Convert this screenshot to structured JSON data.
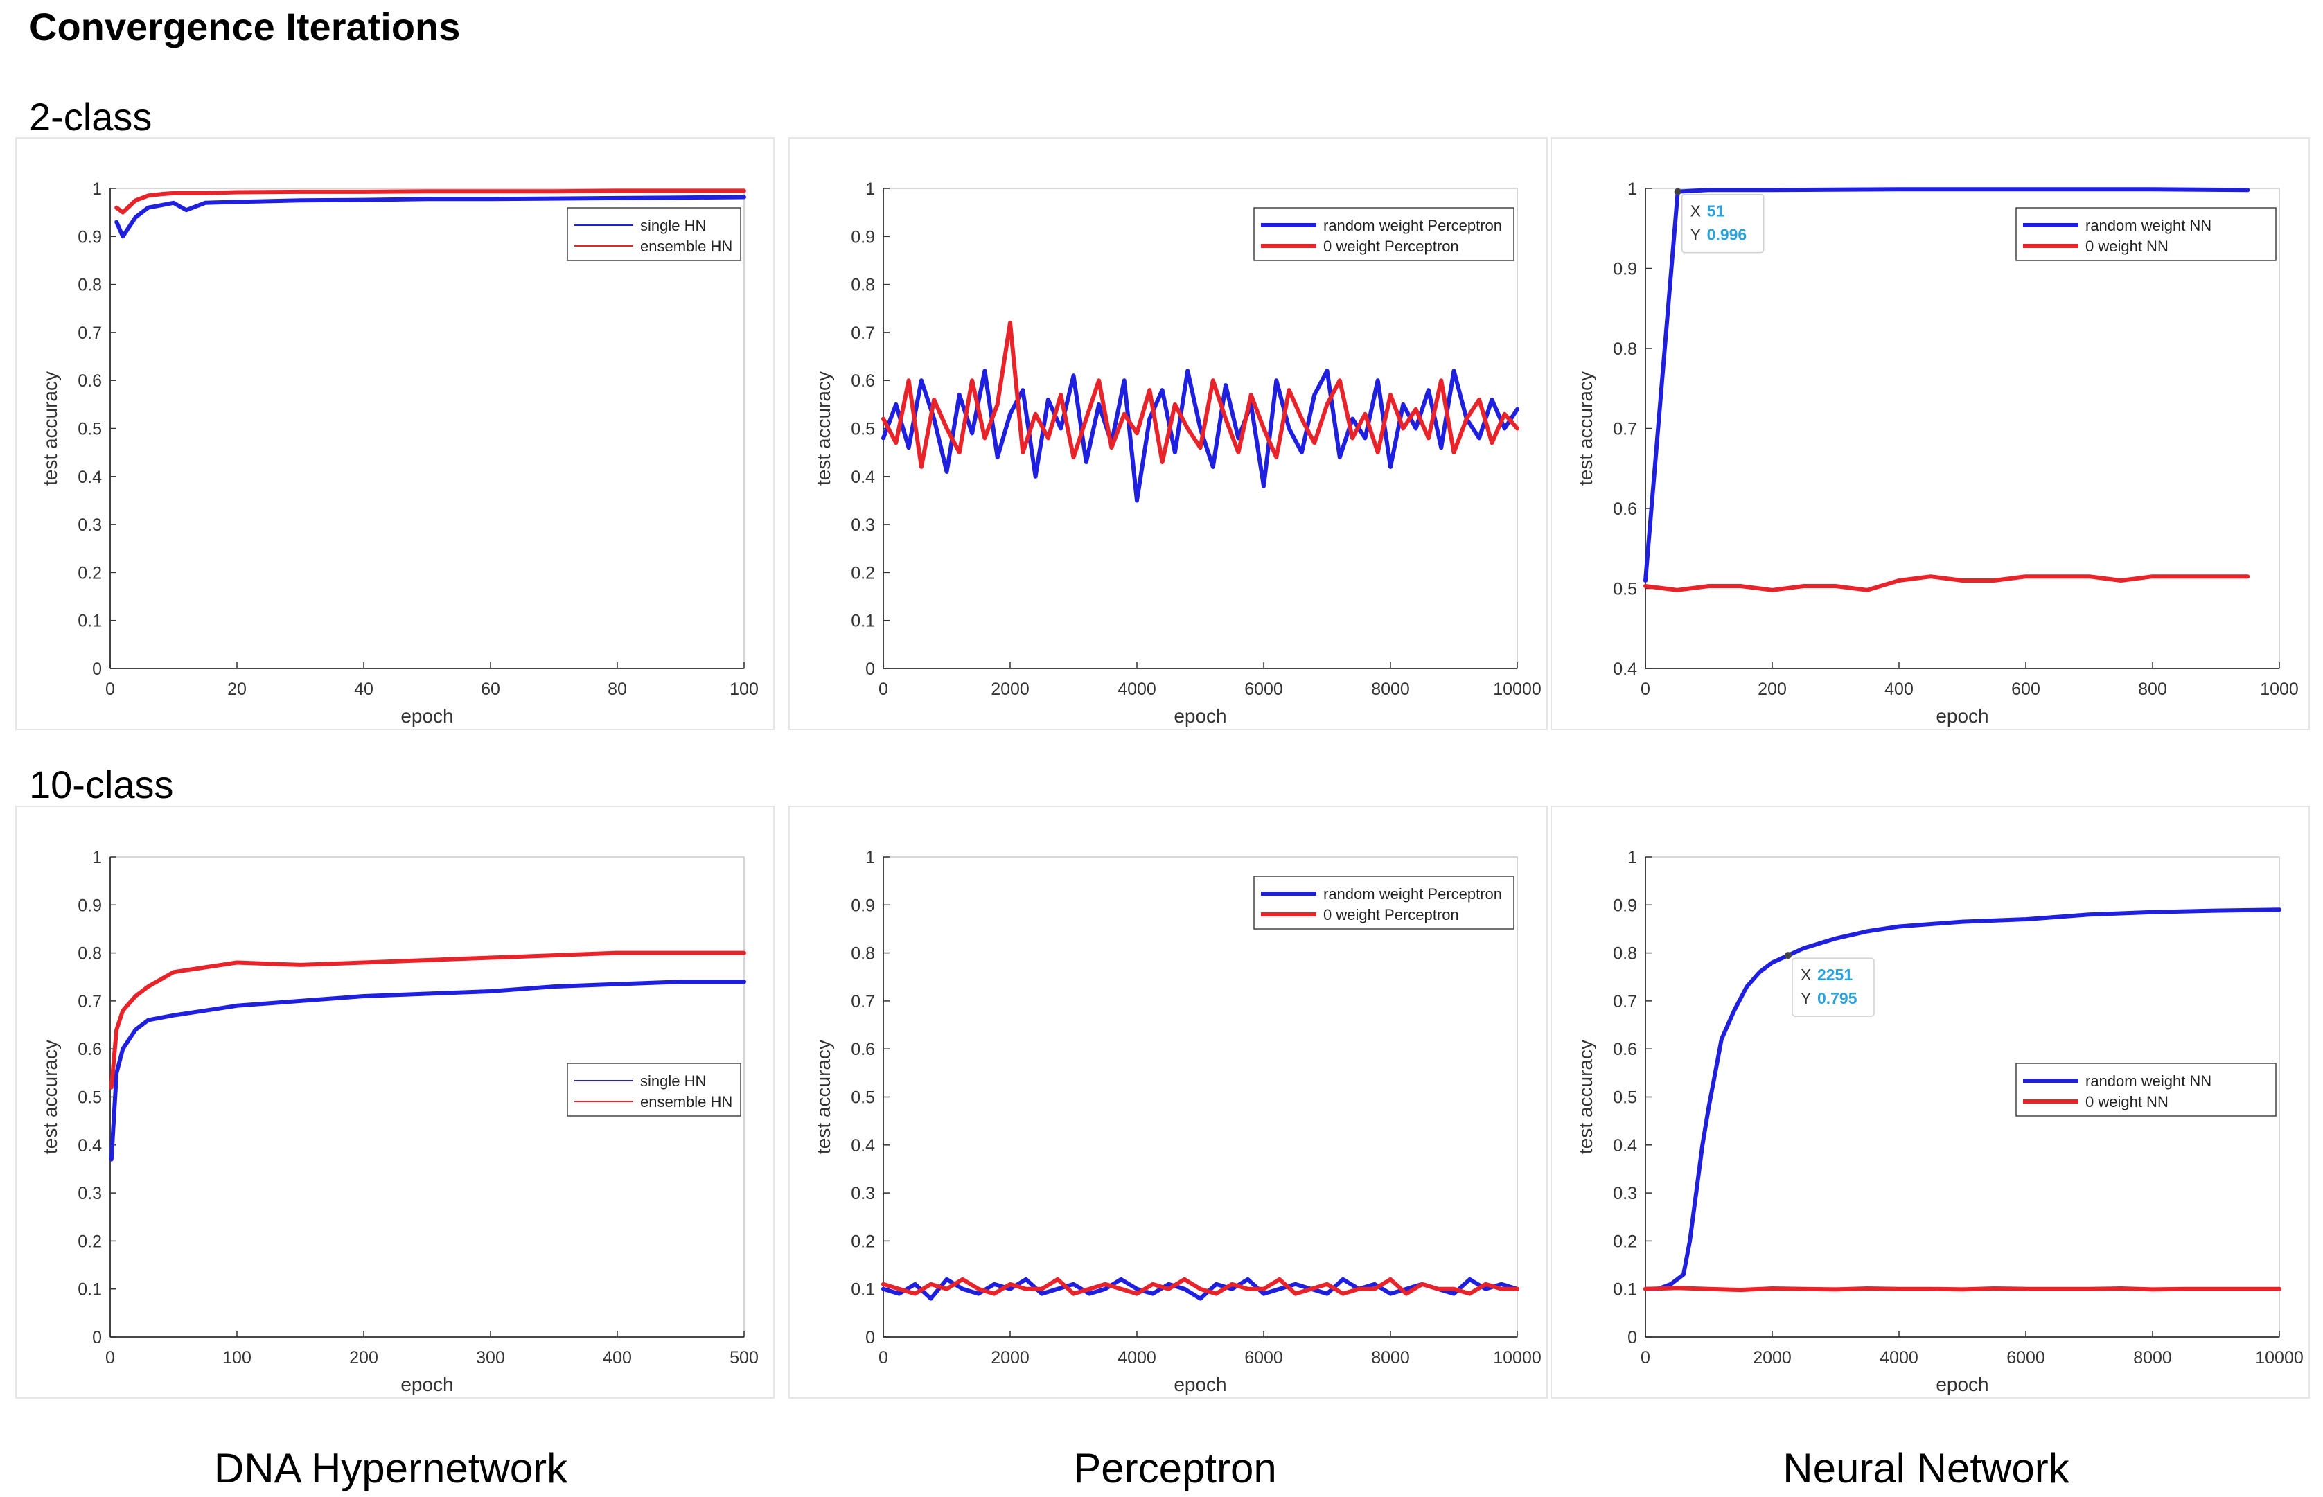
{
  "title": "Convergence Iterations",
  "rows": [
    "2-class",
    "10-class"
  ],
  "columns": [
    "DNA Hypernetwork",
    "Perceptron",
    "Neural Network"
  ],
  "chart_data": [
    {
      "id": "hn2",
      "type": "line",
      "xlabel": "epoch",
      "ylabel": "test accuracy",
      "xlim": [
        0,
        100
      ],
      "ylim": [
        0,
        1
      ],
      "xticks": [
        0,
        20,
        40,
        60,
        80,
        100
      ],
      "yticks": [
        0,
        0.1,
        0.2,
        0.3,
        0.4,
        0.5,
        0.6,
        0.7,
        0.8,
        0.9,
        1
      ],
      "legend": [
        "single HN",
        "ensemble HN"
      ],
      "legend_position": "top-right",
      "legend_style": "thin",
      "series": [
        {
          "name": "single HN",
          "color": "#1f1fe0",
          "x": [
            1,
            2,
            4,
            6,
            8,
            10,
            12,
            15,
            20,
            30,
            40,
            50,
            60,
            70,
            80,
            90,
            100
          ],
          "y": [
            0.93,
            0.9,
            0.94,
            0.96,
            0.965,
            0.97,
            0.955,
            0.97,
            0.972,
            0.975,
            0.976,
            0.978,
            0.978,
            0.979,
            0.98,
            0.981,
            0.982
          ]
        },
        {
          "name": "ensemble HN",
          "color": "#e8232a",
          "x": [
            1,
            2,
            4,
            6,
            8,
            10,
            15,
            20,
            30,
            40,
            50,
            60,
            70,
            80,
            90,
            100
          ],
          "y": [
            0.96,
            0.95,
            0.975,
            0.985,
            0.988,
            0.99,
            0.99,
            0.992,
            0.993,
            0.993,
            0.994,
            0.994,
            0.994,
            0.995,
            0.995,
            0.995
          ]
        }
      ]
    },
    {
      "id": "pc2",
      "type": "line",
      "xlabel": "epoch",
      "ylabel": "test accuracy",
      "xlim": [
        0,
        10000
      ],
      "ylim": [
        0,
        1
      ],
      "xticks": [
        0,
        2000,
        4000,
        6000,
        8000,
        10000
      ],
      "yticks": [
        0,
        0.1,
        0.2,
        0.3,
        0.4,
        0.5,
        0.6,
        0.7,
        0.8,
        0.9,
        1
      ],
      "legend": [
        "random weight Perceptron",
        "0 weight Perceptron"
      ],
      "legend_position": "top-right",
      "legend_style": "thick",
      "series": [
        {
          "name": "random weight Perceptron",
          "color": "#1f1fe0",
          "x": [
            0,
            200,
            400,
            600,
            800,
            1000,
            1200,
            1400,
            1600,
            1800,
            2000,
            2200,
            2400,
            2600,
            2800,
            3000,
            3200,
            3400,
            3600,
            3800,
            4000,
            4200,
            4400,
            4600,
            4800,
            5000,
            5200,
            5400,
            5600,
            5800,
            6000,
            6200,
            6400,
            6600,
            6800,
            7000,
            7200,
            7400,
            7600,
            7800,
            8000,
            8200,
            8400,
            8600,
            8800,
            9000,
            9200,
            9400,
            9600,
            9800,
            10000
          ],
          "y": [
            0.48,
            0.55,
            0.46,
            0.6,
            0.52,
            0.41,
            0.57,
            0.49,
            0.62,
            0.44,
            0.53,
            0.58,
            0.4,
            0.56,
            0.5,
            0.61,
            0.43,
            0.55,
            0.47,
            0.6,
            0.35,
            0.52,
            0.58,
            0.45,
            0.62,
            0.5,
            0.42,
            0.59,
            0.48,
            0.55,
            0.38,
            0.6,
            0.5,
            0.45,
            0.57,
            0.62,
            0.44,
            0.52,
            0.48,
            0.6,
            0.42,
            0.55,
            0.5,
            0.58,
            0.46,
            0.62,
            0.52,
            0.48,
            0.56,
            0.5,
            0.54
          ]
        },
        {
          "name": "0 weight Perceptron",
          "color": "#e8232a",
          "x": [
            0,
            200,
            400,
            600,
            800,
            1000,
            1200,
            1400,
            1600,
            1800,
            2000,
            2200,
            2400,
            2600,
            2800,
            3000,
            3200,
            3400,
            3600,
            3800,
            4000,
            4200,
            4400,
            4600,
            4800,
            5000,
            5200,
            5400,
            5600,
            5800,
            6000,
            6200,
            6400,
            6600,
            6800,
            7000,
            7200,
            7400,
            7600,
            7800,
            8000,
            8200,
            8400,
            8600,
            8800,
            9000,
            9200,
            9400,
            9600,
            9800,
            10000
          ],
          "y": [
            0.52,
            0.47,
            0.6,
            0.42,
            0.56,
            0.5,
            0.45,
            0.6,
            0.48,
            0.55,
            0.72,
            0.45,
            0.53,
            0.48,
            0.57,
            0.44,
            0.52,
            0.6,
            0.46,
            0.53,
            0.49,
            0.58,
            0.43,
            0.55,
            0.5,
            0.46,
            0.6,
            0.52,
            0.45,
            0.57,
            0.5,
            0.44,
            0.58,
            0.52,
            0.47,
            0.55,
            0.6,
            0.48,
            0.53,
            0.45,
            0.57,
            0.5,
            0.54,
            0.48,
            0.6,
            0.45,
            0.52,
            0.56,
            0.47,
            0.53,
            0.5
          ]
        }
      ]
    },
    {
      "id": "nn2",
      "type": "line",
      "xlabel": "epoch",
      "ylabel": "test accuracy",
      "xlim": [
        0,
        1000
      ],
      "ylim": [
        0.4,
        1
      ],
      "xticks": [
        0,
        200,
        400,
        600,
        800,
        1000
      ],
      "yticks": [
        0.4,
        0.5,
        0.6,
        0.7,
        0.8,
        0.9,
        1
      ],
      "legend": [
        "random weight NN",
        "0 weight NN"
      ],
      "legend_position": "top-right",
      "legend_style": "thick",
      "series": [
        {
          "name": "random weight NN",
          "color": "#1f1fe0",
          "x": [
            0,
            51,
            100,
            200,
            400,
            600,
            800,
            950
          ],
          "y": [
            0.51,
            0.996,
            0.998,
            0.998,
            0.999,
            0.999,
            0.999,
            0.998
          ]
        },
        {
          "name": "0 weight NN",
          "color": "#e8232a",
          "x": [
            0,
            50,
            100,
            150,
            200,
            250,
            300,
            350,
            400,
            450,
            500,
            550,
            600,
            650,
            700,
            750,
            800,
            850,
            900,
            950
          ],
          "y": [
            0.503,
            0.498,
            0.503,
            0.503,
            0.498,
            0.503,
            0.503,
            0.498,
            0.51,
            0.515,
            0.51,
            0.51,
            0.515,
            0.515,
            0.515,
            0.51,
            0.515,
            0.515,
            0.515,
            0.515
          ]
        }
      ],
      "datatip": {
        "x_label": "X",
        "x_value": "51",
        "y_label": "Y",
        "y_value": "0.996",
        "at_x": 51,
        "at_y": 0.996
      }
    },
    {
      "id": "hn10",
      "type": "line",
      "xlabel": "epoch",
      "ylabel": "test accuracy",
      "xlim": [
        0,
        500
      ],
      "ylim": [
        0,
        1
      ],
      "xticks": [
        0,
        100,
        200,
        300,
        400,
        500
      ],
      "yticks": [
        0,
        0.1,
        0.2,
        0.3,
        0.4,
        0.5,
        0.6,
        0.7,
        0.8,
        0.9,
        1
      ],
      "legend": [
        "single HN",
        "ensemble HN"
      ],
      "legend_position": "center-right",
      "legend_style": "thin",
      "series": [
        {
          "name": "single HN",
          "color": "#1f1fe0",
          "x": [
            1,
            5,
            10,
            20,
            30,
            50,
            75,
            100,
            150,
            200,
            250,
            300,
            350,
            400,
            450,
            500
          ],
          "y": [
            0.37,
            0.55,
            0.6,
            0.64,
            0.66,
            0.67,
            0.68,
            0.69,
            0.7,
            0.71,
            0.715,
            0.72,
            0.73,
            0.735,
            0.74,
            0.74
          ]
        },
        {
          "name": "ensemble HN",
          "color": "#e8232a",
          "x": [
            1,
            5,
            10,
            20,
            30,
            50,
            75,
            100,
            150,
            200,
            250,
            300,
            350,
            400,
            450,
            500
          ],
          "y": [
            0.52,
            0.64,
            0.68,
            0.71,
            0.73,
            0.76,
            0.77,
            0.78,
            0.775,
            0.78,
            0.785,
            0.79,
            0.795,
            0.8,
            0.8,
            0.8
          ]
        }
      ]
    },
    {
      "id": "pc10",
      "type": "line",
      "xlabel": "epoch",
      "ylabel": "test accuracy",
      "xlim": [
        0,
        10000
      ],
      "ylim": [
        0,
        1
      ],
      "xticks": [
        0,
        2000,
        4000,
        6000,
        8000,
        10000
      ],
      "yticks": [
        0,
        0.1,
        0.2,
        0.3,
        0.4,
        0.5,
        0.6,
        0.7,
        0.8,
        0.9,
        1
      ],
      "legend": [
        "random weight Perceptron",
        "0 weight Perceptron"
      ],
      "legend_position": "top-right",
      "legend_style": "thick",
      "series": [
        {
          "name": "random weight Perceptron",
          "color": "#1f1fe0",
          "x": [
            0,
            250,
            500,
            750,
            1000,
            1250,
            1500,
            1750,
            2000,
            2250,
            2500,
            2750,
            3000,
            3250,
            3500,
            3750,
            4000,
            4250,
            4500,
            4750,
            5000,
            5250,
            5500,
            5750,
            6000,
            6250,
            6500,
            6750,
            7000,
            7250,
            7500,
            7750,
            8000,
            8250,
            8500,
            8750,
            9000,
            9250,
            9500,
            9750,
            10000
          ],
          "y": [
            0.1,
            0.09,
            0.11,
            0.08,
            0.12,
            0.1,
            0.09,
            0.11,
            0.1,
            0.12,
            0.09,
            0.1,
            0.11,
            0.09,
            0.1,
            0.12,
            0.1,
            0.09,
            0.11,
            0.1,
            0.08,
            0.11,
            0.1,
            0.12,
            0.09,
            0.1,
            0.11,
            0.1,
            0.09,
            0.12,
            0.1,
            0.11,
            0.09,
            0.1,
            0.11,
            0.1,
            0.09,
            0.12,
            0.1,
            0.11,
            0.1
          ]
        },
        {
          "name": "0 weight Perceptron",
          "color": "#e8232a",
          "x": [
            0,
            250,
            500,
            750,
            1000,
            1250,
            1500,
            1750,
            2000,
            2250,
            2500,
            2750,
            3000,
            3250,
            3500,
            3750,
            4000,
            4250,
            4500,
            4750,
            5000,
            5250,
            5500,
            5750,
            6000,
            6250,
            6500,
            6750,
            7000,
            7250,
            7500,
            7750,
            8000,
            8250,
            8500,
            8750,
            9000,
            9250,
            9500,
            9750,
            10000
          ],
          "y": [
            0.11,
            0.1,
            0.09,
            0.11,
            0.1,
            0.12,
            0.1,
            0.09,
            0.11,
            0.1,
            0.1,
            0.12,
            0.09,
            0.1,
            0.11,
            0.1,
            0.09,
            0.11,
            0.1,
            0.12,
            0.1,
            0.09,
            0.11,
            0.1,
            0.1,
            0.12,
            0.09,
            0.1,
            0.11,
            0.09,
            0.1,
            0.1,
            0.12,
            0.09,
            0.11,
            0.1,
            0.1,
            0.09,
            0.11,
            0.1,
            0.1
          ]
        }
      ]
    },
    {
      "id": "nn10",
      "type": "line",
      "xlabel": "epoch",
      "ylabel": "test accuracy",
      "xlim": [
        0,
        10000
      ],
      "ylim": [
        0,
        1
      ],
      "xticks": [
        0,
        2000,
        4000,
        6000,
        8000,
        10000
      ],
      "yticks": [
        0,
        0.1,
        0.2,
        0.3,
        0.4,
        0.5,
        0.6,
        0.7,
        0.8,
        0.9,
        1
      ],
      "legend": [
        "random weight NN",
        "0 weight NN"
      ],
      "legend_position": "center-right",
      "legend_style": "thick",
      "series": [
        {
          "name": "random weight NN",
          "color": "#1f1fe0",
          "x": [
            0,
            200,
            400,
            600,
            700,
            800,
            900,
            1000,
            1100,
            1200,
            1400,
            1600,
            1800,
            2000,
            2251,
            2500,
            3000,
            3500,
            4000,
            5000,
            6000,
            7000,
            8000,
            9000,
            10000
          ],
          "y": [
            0.1,
            0.1,
            0.11,
            0.13,
            0.2,
            0.3,
            0.4,
            0.48,
            0.55,
            0.62,
            0.68,
            0.73,
            0.76,
            0.78,
            0.795,
            0.81,
            0.83,
            0.845,
            0.855,
            0.865,
            0.87,
            0.88,
            0.885,
            0.888,
            0.89
          ]
        },
        {
          "name": "0 weight NN",
          "color": "#e8232a",
          "x": [
            0,
            500,
            1000,
            1500,
            2000,
            2500,
            3000,
            3500,
            4000,
            4500,
            5000,
            5500,
            6000,
            6500,
            7000,
            7500,
            8000,
            8500,
            9000,
            9500,
            10000
          ],
          "y": [
            0.1,
            0.102,
            0.1,
            0.098,
            0.101,
            0.1,
            0.099,
            0.101,
            0.1,
            0.1,
            0.099,
            0.101,
            0.1,
            0.1,
            0.1,
            0.101,
            0.099,
            0.1,
            0.1,
            0.1,
            0.1
          ]
        }
      ],
      "datatip": {
        "x_label": "X",
        "x_value": "2251",
        "y_label": "Y",
        "y_value": "0.795",
        "at_x": 2251,
        "at_y": 0.795
      }
    }
  ]
}
